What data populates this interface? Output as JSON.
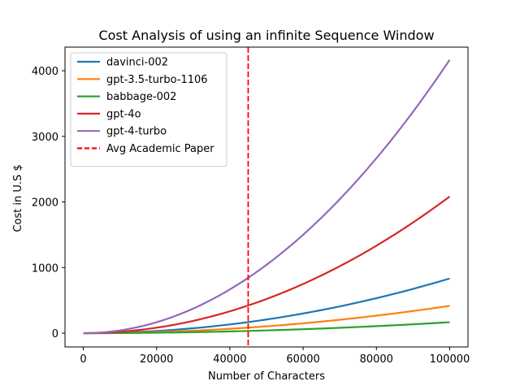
{
  "chart_data": {
    "type": "line",
    "title": "Cost Analysis of using an infinite Sequence Window",
    "xlabel": "Number of Characters",
    "ylabel": "Cost in U.S $",
    "xlim": [
      -5000,
      105000
    ],
    "ylim": [
      -210,
      4360
    ],
    "xticks": [
      0,
      20000,
      40000,
      60000,
      80000,
      100000
    ],
    "xtick_labels": [
      "0",
      "20000",
      "40000",
      "60000",
      "80000",
      "100000"
    ],
    "yticks": [
      0,
      1000,
      2000,
      3000,
      4000
    ],
    "ytick_labels": [
      "0",
      "1000",
      "2000",
      "3000",
      "4000"
    ],
    "grid": false,
    "legend_position": "top-left",
    "x": [
      0,
      10000,
      20000,
      30000,
      40000,
      45000,
      50000,
      60000,
      70000,
      80000,
      90000,
      100000
    ],
    "series": [
      {
        "name": "davinci-002",
        "color": "#1f77b4",
        "values": [
          0,
          8,
          33,
          75,
          133,
          168,
          208,
          300,
          408,
          533,
          675,
          833
        ]
      },
      {
        "name": "gpt-3.5-turbo-1106",
        "color": "#ff7f0e",
        "values": [
          0,
          4,
          17,
          38,
          67,
          84,
          104,
          150,
          204,
          267,
          338,
          417
        ]
      },
      {
        "name": "babbage-002",
        "color": "#2ca02c",
        "values": [
          0,
          2,
          7,
          15,
          27,
          34,
          42,
          60,
          82,
          107,
          135,
          167
        ]
      },
      {
        "name": "gpt-4o",
        "color": "#d62728",
        "values": [
          0,
          21,
          83,
          187,
          333,
          422,
          521,
          750,
          1021,
          1333,
          1688,
          2083
        ]
      },
      {
        "name": "gpt-4-turbo",
        "color": "#9467bd",
        "values": [
          0,
          42,
          167,
          375,
          667,
          844,
          1042,
          1500,
          2042,
          2667,
          3375,
          4167
        ]
      }
    ],
    "vline": {
      "name": "Avg Academic Paper",
      "x": 45000,
      "color": "#ff0000",
      "style": "dashed"
    }
  }
}
